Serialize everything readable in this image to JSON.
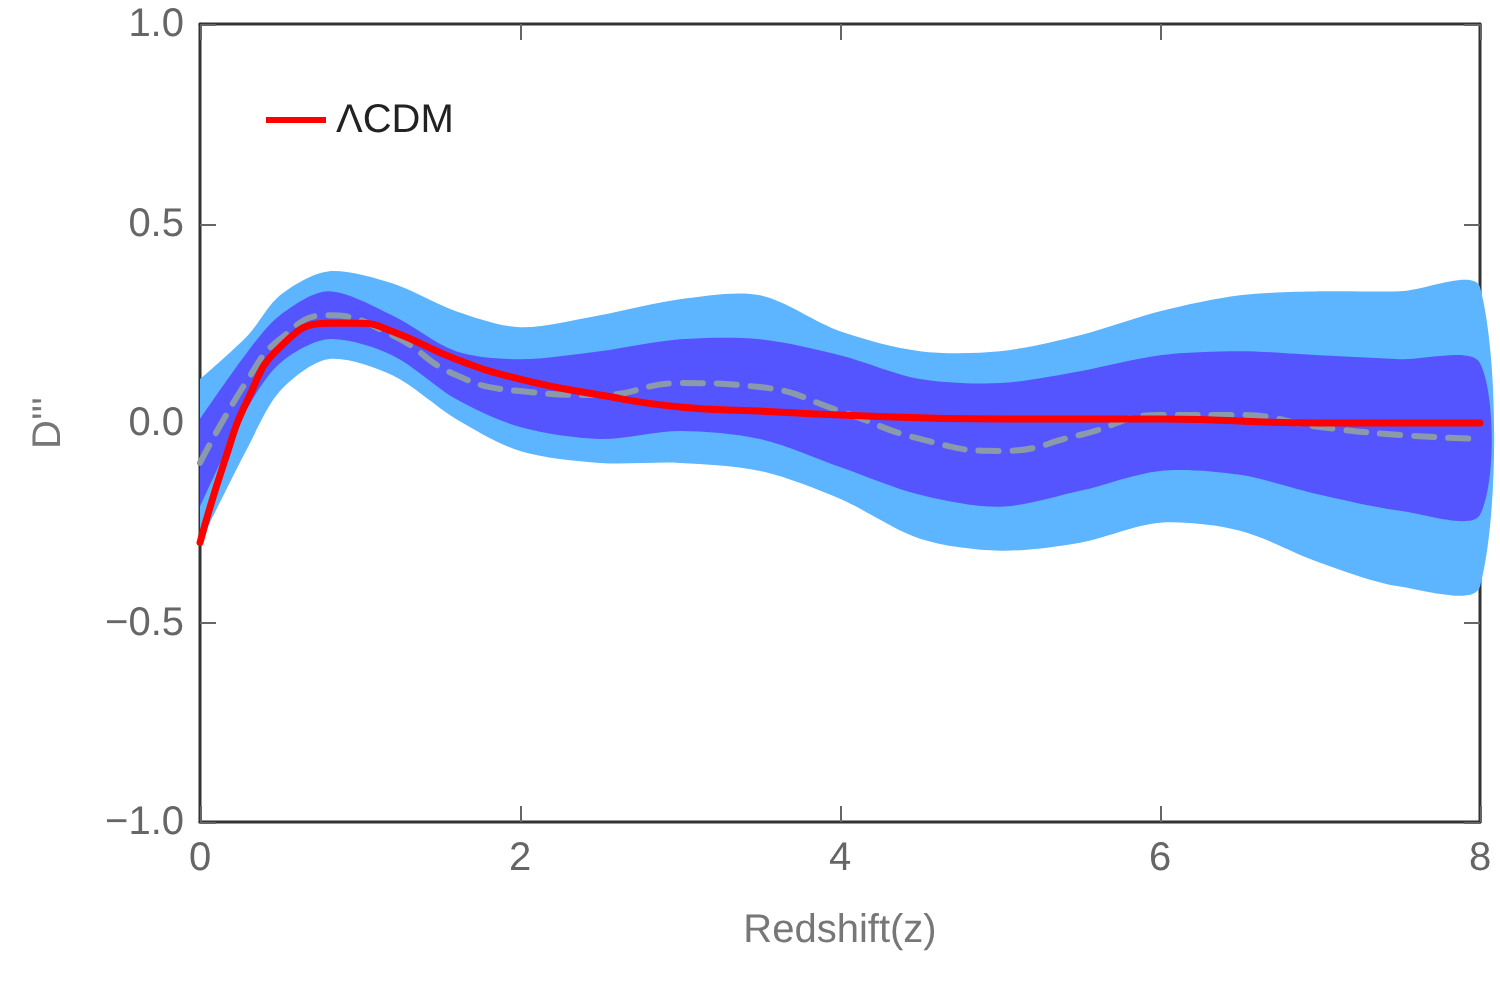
{
  "chart_data": {
    "type": "line",
    "xlabel": "Redshift(z)",
    "ylabel": "D'''",
    "xlim": [
      0,
      8
    ],
    "ylim": [
      -1,
      1
    ],
    "xticks": [
      0,
      2,
      4,
      6,
      8
    ],
    "yticks": [
      {
        "value": -1,
        "label": "−1.0"
      },
      {
        "value": -0.5,
        "label": "−0.5"
      },
      {
        "value": 0,
        "label": "0.0"
      },
      {
        "value": 0.5,
        "label": "0.5"
      },
      {
        "value": 1,
        "label": "1.0"
      }
    ],
    "grid": false,
    "legend": "top left",
    "marker": "none",
    "series": [
      {
        "color": "#5eb5ff",
        "x": [
          0,
          0.3,
          0.5,
          0.8,
          1.2,
          1.6,
          2,
          2.5,
          3,
          3.5,
          4,
          4.5,
          5,
          5.5,
          6,
          6.5,
          7,
          7.5,
          8
        ],
        "values": [
          null,
          null,
          null,
          null,
          null,
          null,
          null,
          null,
          null,
          null,
          null,
          null,
          null,
          null,
          null,
          null,
          null,
          null,
          null
        ],
        "lower": [
          -0.3,
          -0.06,
          0.08,
          0.16,
          0.12,
          0.01,
          -0.07,
          -0.1,
          -0.1,
          -0.12,
          -0.19,
          -0.29,
          -0.32,
          -0.3,
          -0.25,
          -0.27,
          -0.35,
          -0.41,
          -0.41
        ],
        "upper": [
          0.11,
          0.22,
          0.32,
          0.38,
          0.35,
          0.28,
          0.24,
          0.27,
          0.31,
          0.32,
          0.23,
          0.18,
          0.18,
          0.22,
          0.28,
          0.32,
          0.33,
          0.33,
          0.34
        ]
      },
      {
        "color": "#5555ff",
        "x": [
          0,
          0.3,
          0.5,
          0.8,
          1.2,
          1.6,
          2,
          2.5,
          3,
          3.5,
          4,
          4.5,
          5,
          5.5,
          6,
          6.5,
          7,
          7.5,
          8
        ],
        "values": [
          null,
          null,
          null,
          null,
          null,
          null,
          null,
          null,
          null,
          null,
          null,
          null,
          null,
          null,
          null,
          null,
          null,
          null,
          null
        ],
        "lower": [
          -0.21,
          0.04,
          0.15,
          0.21,
          0.17,
          0.06,
          -0.01,
          -0.04,
          -0.02,
          -0.04,
          -0.11,
          -0.18,
          -0.21,
          -0.17,
          -0.12,
          -0.13,
          -0.18,
          -0.22,
          -0.23
        ],
        "upper": [
          0.01,
          0.18,
          0.27,
          0.33,
          0.27,
          0.18,
          0.16,
          0.18,
          0.21,
          0.21,
          0.17,
          0.11,
          0.1,
          0.13,
          0.17,
          0.18,
          0.17,
          0.16,
          0.15
        ]
      },
      {
        "color": "#8a9aaa",
        "line_style": "dashed",
        "x": [
          0,
          0.3,
          0.5,
          0.8,
          1.2,
          1.6,
          2,
          2.5,
          3,
          3.5,
          4,
          4.5,
          5,
          5.5,
          6,
          6.5,
          7,
          7.5,
          8
        ],
        "values": [
          -0.1,
          0.11,
          0.21,
          0.27,
          0.22,
          0.12,
          0.08,
          0.07,
          0.1,
          0.09,
          0.03,
          -0.04,
          -0.07,
          -0.03,
          0.02,
          0.02,
          -0.01,
          -0.03,
          -0.04
        ]
      },
      {
        "name": "ΛCDM",
        "color": "#ff0000",
        "line_style": "solid",
        "x": [
          0,
          0.15,
          0.3,
          0.5,
          0.8,
          1,
          1.2,
          1.6,
          2,
          2.5,
          3,
          3.5,
          4,
          5,
          6,
          7,
          8
        ],
        "values": [
          -0.3,
          -0.1,
          0.06,
          0.19,
          0.25,
          0.25,
          0.23,
          0.16,
          0.11,
          0.07,
          0.04,
          0.03,
          0.02,
          0.01,
          0.01,
          0,
          0
        ]
      }
    ]
  }
}
